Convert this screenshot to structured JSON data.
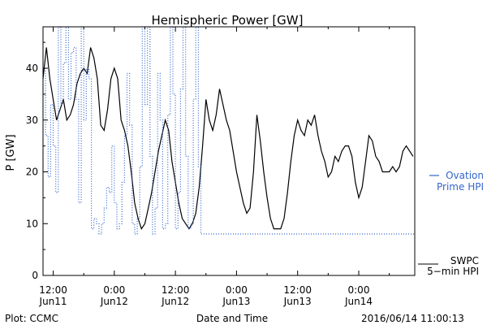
{
  "footer": {
    "plot_credit": "Plot: CCMC",
    "timestamp": "2016/06/14 11:00:13"
  },
  "chart_data": {
    "type": "line",
    "title": "Hemispheric Power [GW]",
    "xlabel": "Date and Time",
    "ylabel": "P [GW]",
    "ylim": [
      0,
      48
    ],
    "yticks": [
      0,
      10,
      20,
      30,
      40
    ],
    "xlim": [
      "2016-06-11 10:00",
      "2016-06-14 11:00"
    ],
    "xticks": [
      {
        "x": "2016-06-11 12:00",
        "line1": "12:00",
        "line2": "Jun11"
      },
      {
        "x": "2016-06-12 00:00",
        "line1": "0:00",
        "line2": "Jun12"
      },
      {
        "x": "2016-06-12 12:00",
        "line1": "12:00",
        "line2": "Jun12"
      },
      {
        "x": "2016-06-13 00:00",
        "line1": "0:00",
        "line2": "Jun13"
      },
      {
        "x": "2016-06-13 12:00",
        "line1": "12:00",
        "line2": "Jun13"
      },
      {
        "x": "2016-06-14 00:00",
        "line1": "0:00",
        "line2": "Jun14"
      }
    ],
    "grid": false,
    "series": [
      {
        "name": "SWPC 5-min HPI",
        "legend_line1": "SWPC",
        "legend_line2": "5−min HPI",
        "color": "#000000",
        "style": "solid",
        "points": [
          [
            "2016-06-11 10:00",
            38
          ],
          [
            "2016-06-11 10:40",
            44
          ],
          [
            "2016-06-11 11:20",
            38
          ],
          [
            "2016-06-11 12:00",
            34
          ],
          [
            "2016-06-11 12:40",
            30
          ],
          [
            "2016-06-11 13:20",
            32
          ],
          [
            "2016-06-11 14:00",
            34
          ],
          [
            "2016-06-11 14:40",
            30
          ],
          [
            "2016-06-11 15:20",
            31
          ],
          [
            "2016-06-11 16:00",
            33
          ],
          [
            "2016-06-11 16:40",
            37
          ],
          [
            "2016-06-11 17:20",
            39
          ],
          [
            "2016-06-11 18:00",
            40
          ],
          [
            "2016-06-11 18:40",
            39
          ],
          [
            "2016-06-11 19:20",
            44
          ],
          [
            "2016-06-11 20:00",
            42
          ],
          [
            "2016-06-11 20:40",
            38
          ],
          [
            "2016-06-11 21:20",
            29
          ],
          [
            "2016-06-11 22:00",
            28
          ],
          [
            "2016-06-11 22:40",
            32
          ],
          [
            "2016-06-11 23:20",
            38
          ],
          [
            "2016-06-12 00:00",
            40
          ],
          [
            "2016-06-12 00:40",
            38
          ],
          [
            "2016-06-12 01:20",
            30
          ],
          [
            "2016-06-12 02:00",
            28
          ],
          [
            "2016-06-12 02:40",
            25
          ],
          [
            "2016-06-12 03:20",
            20
          ],
          [
            "2016-06-12 04:00",
            14
          ],
          [
            "2016-06-12 04:40",
            11
          ],
          [
            "2016-06-12 05:20",
            9
          ],
          [
            "2016-06-12 06:00",
            10
          ],
          [
            "2016-06-12 06:40",
            13
          ],
          [
            "2016-06-12 07:20",
            16
          ],
          [
            "2016-06-12 08:00",
            20
          ],
          [
            "2016-06-12 08:40",
            24
          ],
          [
            "2016-06-12 09:20",
            27
          ],
          [
            "2016-06-12 10:00",
            30
          ],
          [
            "2016-06-12 10:40",
            28
          ],
          [
            "2016-06-12 11:20",
            22
          ],
          [
            "2016-06-12 12:00",
            18
          ],
          [
            "2016-06-12 12:40",
            14
          ],
          [
            "2016-06-12 13:20",
            11
          ],
          [
            "2016-06-12 14:00",
            10
          ],
          [
            "2016-06-12 14:40",
            9
          ],
          [
            "2016-06-12 15:20",
            10
          ],
          [
            "2016-06-12 16:00",
            12
          ],
          [
            "2016-06-12 16:40",
            17
          ],
          [
            "2016-06-12 17:20",
            25
          ],
          [
            "2016-06-12 18:00",
            34
          ],
          [
            "2016-06-12 18:40",
            30
          ],
          [
            "2016-06-12 19:20",
            28
          ],
          [
            "2016-06-12 20:00",
            31
          ],
          [
            "2016-06-12 20:40",
            36
          ],
          [
            "2016-06-12 21:20",
            33
          ],
          [
            "2016-06-12 22:00",
            30
          ],
          [
            "2016-06-12 22:40",
            28
          ],
          [
            "2016-06-12 23:20",
            24
          ],
          [
            "2016-06-13 00:00",
            20
          ],
          [
            "2016-06-13 00:40",
            17
          ],
          [
            "2016-06-13 01:20",
            14
          ],
          [
            "2016-06-13 02:00",
            12
          ],
          [
            "2016-06-13 02:40",
            13
          ],
          [
            "2016-06-13 03:20",
            20
          ],
          [
            "2016-06-13 04:00",
            31
          ],
          [
            "2016-06-13 04:40",
            26
          ],
          [
            "2016-06-13 05:20",
            20
          ],
          [
            "2016-06-13 06:00",
            15
          ],
          [
            "2016-06-13 06:40",
            11
          ],
          [
            "2016-06-13 07:20",
            9
          ],
          [
            "2016-06-13 08:00",
            9
          ],
          [
            "2016-06-13 08:40",
            9
          ],
          [
            "2016-06-13 09:20",
            11
          ],
          [
            "2016-06-13 10:00",
            16
          ],
          [
            "2016-06-13 10:40",
            22
          ],
          [
            "2016-06-13 11:20",
            27
          ],
          [
            "2016-06-13 12:00",
            30
          ],
          [
            "2016-06-13 12:40",
            28
          ],
          [
            "2016-06-13 13:20",
            27
          ],
          [
            "2016-06-13 14:00",
            30
          ],
          [
            "2016-06-13 14:40",
            29
          ],
          [
            "2016-06-13 15:20",
            31
          ],
          [
            "2016-06-13 16:00",
            27
          ],
          [
            "2016-06-13 16:40",
            24
          ],
          [
            "2016-06-13 17:20",
            22
          ],
          [
            "2016-06-13 18:00",
            19
          ],
          [
            "2016-06-13 18:40",
            20
          ],
          [
            "2016-06-13 19:20",
            23
          ],
          [
            "2016-06-13 20:00",
            22
          ],
          [
            "2016-06-13 20:40",
            24
          ],
          [
            "2016-06-13 21:20",
            25
          ],
          [
            "2016-06-13 22:00",
            25
          ],
          [
            "2016-06-13 22:40",
            23
          ],
          [
            "2016-06-13 23:20",
            18
          ],
          [
            "2016-06-14 00:00",
            15
          ],
          [
            "2016-06-14 00:40",
            17
          ],
          [
            "2016-06-14 01:20",
            22
          ],
          [
            "2016-06-14 02:00",
            27
          ],
          [
            "2016-06-14 02:40",
            26
          ],
          [
            "2016-06-14 03:20",
            23
          ],
          [
            "2016-06-14 04:00",
            22
          ],
          [
            "2016-06-14 04:40",
            20
          ],
          [
            "2016-06-14 05:20",
            20
          ],
          [
            "2016-06-14 06:00",
            20
          ],
          [
            "2016-06-14 06:40",
            21
          ],
          [
            "2016-06-14 07:20",
            20
          ],
          [
            "2016-06-14 08:00",
            21
          ],
          [
            "2016-06-14 08:40",
            24
          ],
          [
            "2016-06-14 09:20",
            25
          ],
          [
            "2016-06-14 10:00",
            24
          ],
          [
            "2016-06-14 10:40",
            23
          ]
        ]
      },
      {
        "name": "Ovation Prime HPI",
        "legend_line1": "Ovation",
        "legend_line2": "Prime HPI",
        "color": "#3366cc",
        "style": "dotted-step",
        "points": [
          [
            "2016-06-11 10:00",
            40
          ],
          [
            "2016-06-11 10:30",
            27
          ],
          [
            "2016-06-11 11:00",
            19
          ],
          [
            "2016-06-11 11:30",
            33
          ],
          [
            "2016-06-11 12:00",
            25
          ],
          [
            "2016-06-11 12:30",
            16
          ],
          [
            "2016-06-11 13:00",
            48
          ],
          [
            "2016-06-11 13:30",
            33
          ],
          [
            "2016-06-11 14:00",
            41
          ],
          [
            "2016-06-11 14:30",
            48
          ],
          [
            "2016-06-11 15:00",
            34
          ],
          [
            "2016-06-11 15:30",
            43
          ],
          [
            "2016-06-11 16:00",
            44
          ],
          [
            "2016-06-11 16:30",
            34
          ],
          [
            "2016-06-11 17:00",
            14
          ],
          [
            "2016-06-11 17:30",
            48
          ],
          [
            "2016-06-11 18:00",
            30
          ],
          [
            "2016-06-11 18:30",
            40
          ],
          [
            "2016-06-11 19:00",
            38
          ],
          [
            "2016-06-11 19:30",
            9
          ],
          [
            "2016-06-11 20:00",
            11
          ],
          [
            "2016-06-11 20:30",
            10
          ],
          [
            "2016-06-11 21:00",
            8
          ],
          [
            "2016-06-11 21:30",
            10
          ],
          [
            "2016-06-11 22:00",
            13
          ],
          [
            "2016-06-11 22:30",
            17
          ],
          [
            "2016-06-11 23:00",
            16
          ],
          [
            "2016-06-11 23:30",
            25
          ],
          [
            "2016-06-12 00:00",
            14
          ],
          [
            "2016-06-12 00:30",
            9
          ],
          [
            "2016-06-12 01:00",
            10
          ],
          [
            "2016-06-12 01:30",
            18
          ],
          [
            "2016-06-12 02:00",
            27
          ],
          [
            "2016-06-12 02:30",
            39
          ],
          [
            "2016-06-12 03:00",
            29
          ],
          [
            "2016-06-12 03:30",
            10
          ],
          [
            "2016-06-12 04:00",
            8
          ],
          [
            "2016-06-12 04:30",
            11
          ],
          [
            "2016-06-12 05:00",
            21
          ],
          [
            "2016-06-12 05:30",
            48
          ],
          [
            "2016-06-12 06:00",
            33
          ],
          [
            "2016-06-12 06:30",
            48
          ],
          [
            "2016-06-12 07:00",
            23
          ],
          [
            "2016-06-12 07:30",
            8
          ],
          [
            "2016-06-12 08:00",
            13
          ],
          [
            "2016-06-12 08:30",
            39
          ],
          [
            "2016-06-12 09:00",
            30
          ],
          [
            "2016-06-12 09:30",
            9
          ],
          [
            "2016-06-12 10:00",
            10
          ],
          [
            "2016-06-12 10:30",
            31
          ],
          [
            "2016-06-12 11:00",
            48
          ],
          [
            "2016-06-12 11:30",
            35
          ],
          [
            "2016-06-12 12:00",
            9
          ],
          [
            "2016-06-12 12:30",
            16
          ],
          [
            "2016-06-12 13:00",
            36
          ],
          [
            "2016-06-12 13:30",
            48
          ],
          [
            "2016-06-12 14:00",
            23
          ],
          [
            "2016-06-12 14:30",
            9
          ],
          [
            "2016-06-12 15:00",
            10
          ],
          [
            "2016-06-12 15:30",
            34
          ],
          [
            "2016-06-12 16:00",
            48
          ],
          [
            "2016-06-12 16:30",
            21
          ],
          [
            "2016-06-12 17:00",
            8
          ]
        ]
      }
    ]
  }
}
